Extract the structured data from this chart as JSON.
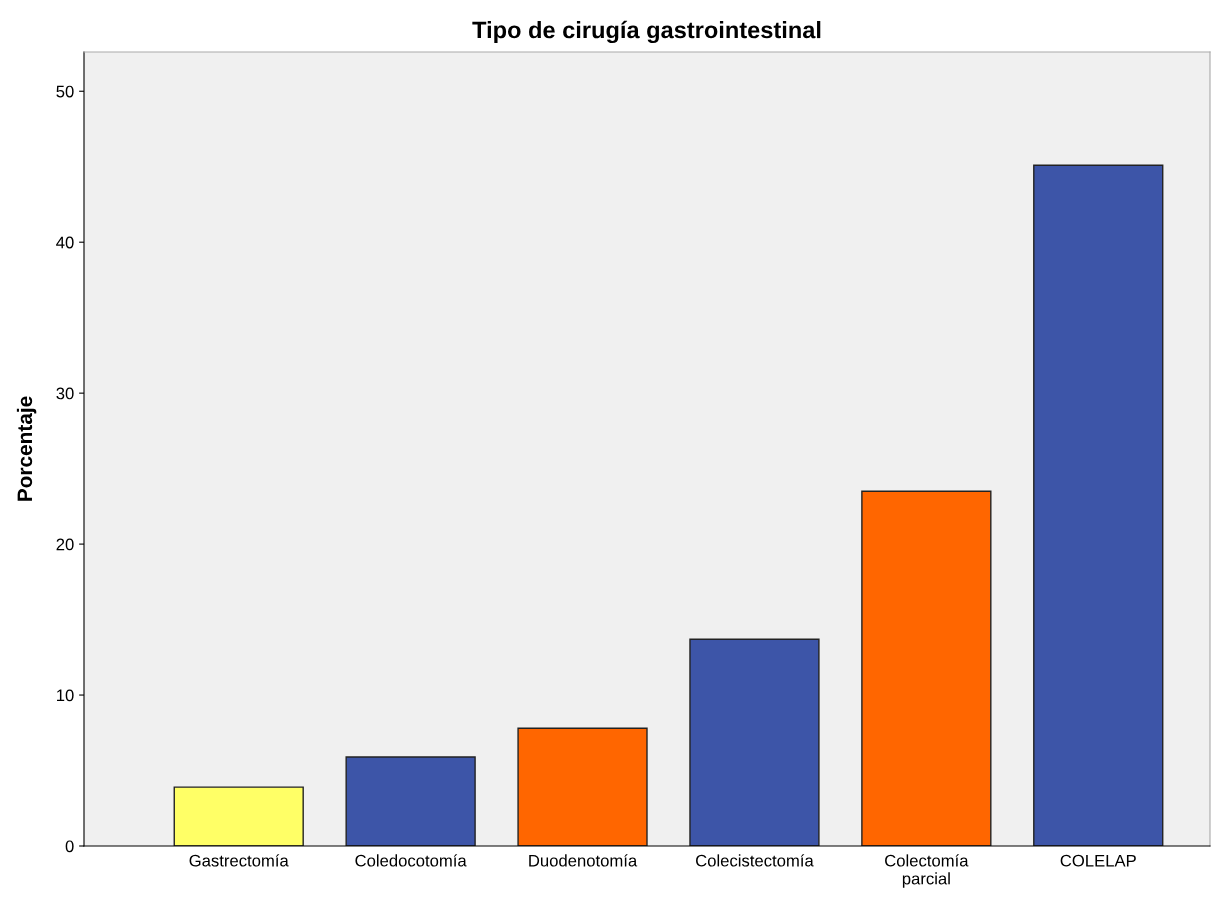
{
  "chart_data": {
    "type": "bar",
    "title": "Tipo de cirugía gastrointestinal",
    "ylabel": "Porcentaje",
    "categories": [
      "Gastrectomía",
      "Coledocotomía",
      "Duodenotomía",
      "Colecistectomía",
      "Colectomía\nparcial",
      "COLELAP"
    ],
    "values": [
      3.9,
      5.9,
      7.8,
      13.7,
      23.5,
      45.1
    ],
    "colors": [
      "#ffff66",
      "#3d55a8",
      "#ff6600",
      "#3d55a8",
      "#ff6600",
      "#3d55a8"
    ],
    "ylim": [
      0,
      52.6
    ],
    "yticks": [
      0,
      10,
      20,
      30,
      40,
      50
    ],
    "grid": false,
    "legend": false
  }
}
